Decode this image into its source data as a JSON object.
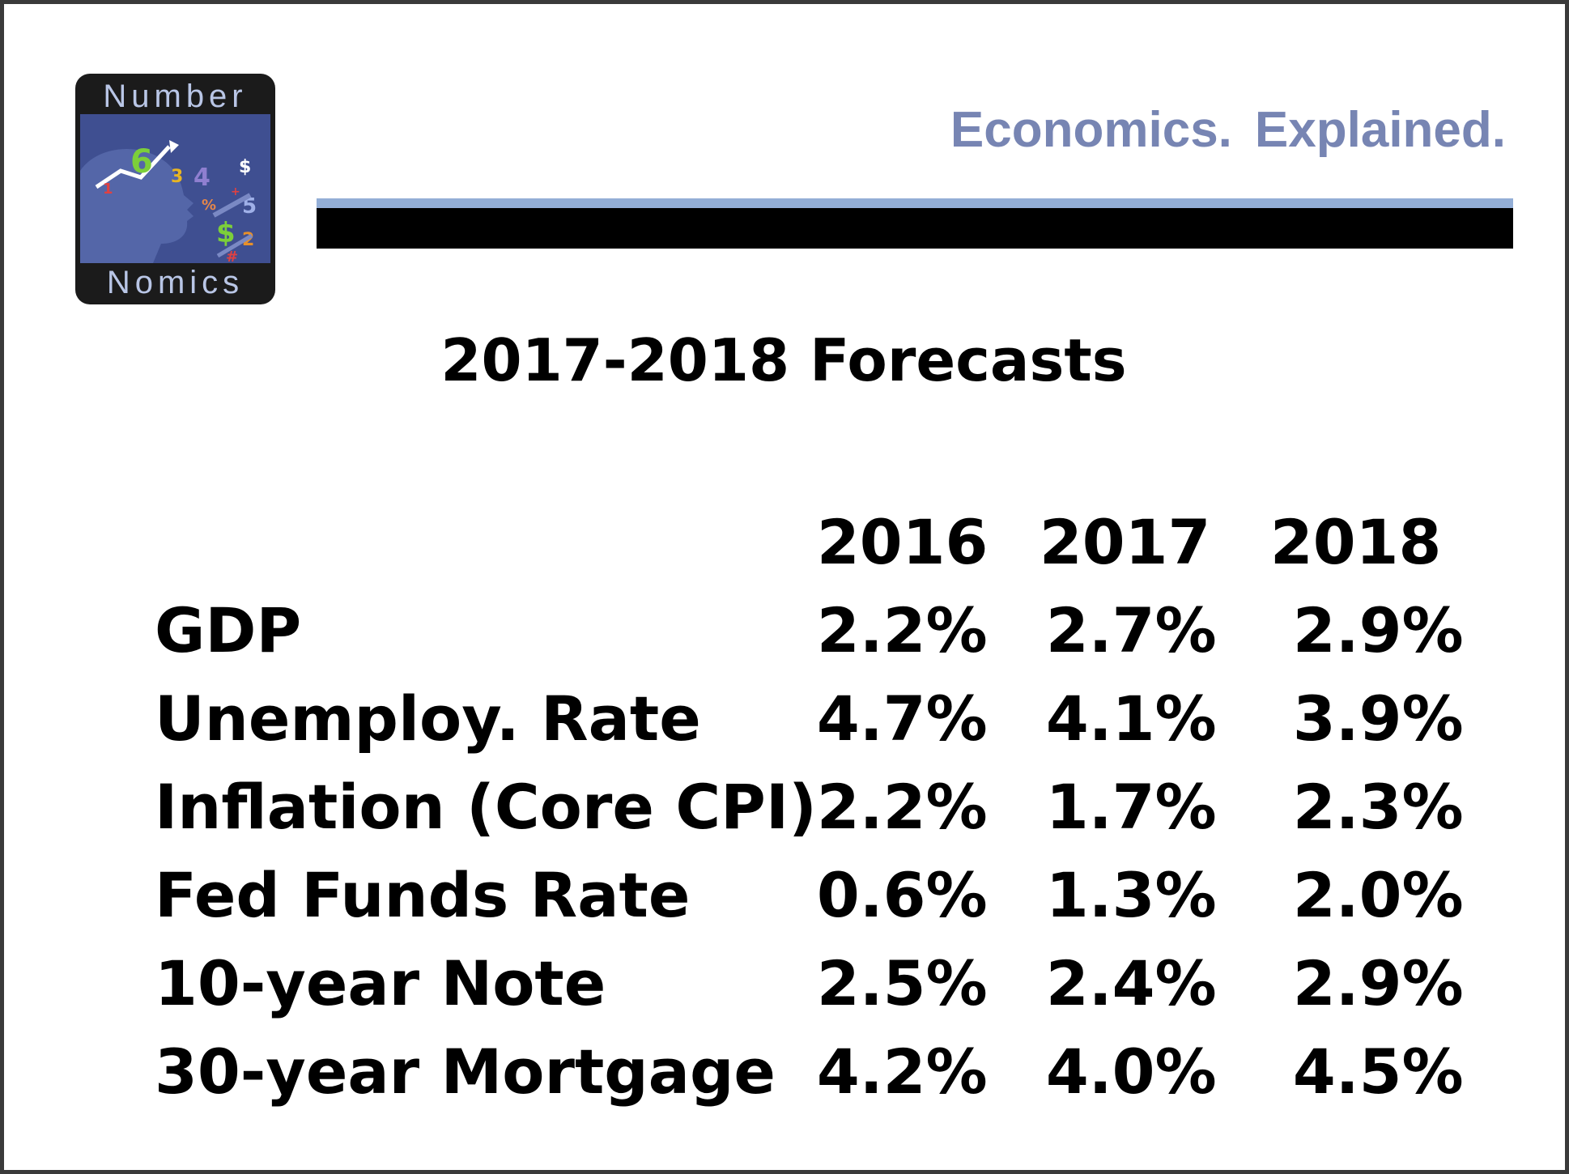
{
  "logo": {
    "top_word": "Number",
    "bottom_word": "Nomics",
    "art_glyphs": [
      "1",
      "6",
      "3",
      "4",
      "$",
      "%",
      "5",
      "$",
      "2",
      "#",
      "+"
    ],
    "colors": {
      "frame": "#1b1b1b",
      "art_background": "#3f4f91",
      "face_silhouette": "#5466a8",
      "text": "#b9c6e6"
    }
  },
  "header": {
    "tagline_part1": "Economics.",
    "tagline_part2": "Explained.",
    "tagline_color": "#7785b3",
    "bar_light_color": "#93aed6",
    "bar_dark_color": "#000000"
  },
  "title": "2017-2018 Forecasts",
  "table": {
    "headers": [
      "",
      "2016",
      "2017",
      "2018"
    ],
    "rows": [
      {
        "label": "GDP",
        "y2016": "2.2%",
        "y2017": "2.7%",
        "y2018": "2.9%"
      },
      {
        "label": "Unemploy. Rate",
        "y2016": "4.7%",
        "y2017": "4.1%",
        "y2018": "3.9%"
      },
      {
        "label": "Inflation (Core CPI)",
        "y2016": "2.2%",
        "y2017": "1.7%",
        "y2018": "2.3%"
      },
      {
        "label": "Fed Funds Rate",
        "y2016": "0.6%",
        "y2017": "1.3%",
        "y2018": "2.0%"
      },
      {
        "label": "10-year Note",
        "y2016": "2.5%",
        "y2017": "2.4%",
        "y2018": "2.9%"
      },
      {
        "label": "30-year Mortgage",
        "y2016": "4.2%",
        "y2017": "4.0%",
        "y2018": "4.5%"
      }
    ]
  }
}
